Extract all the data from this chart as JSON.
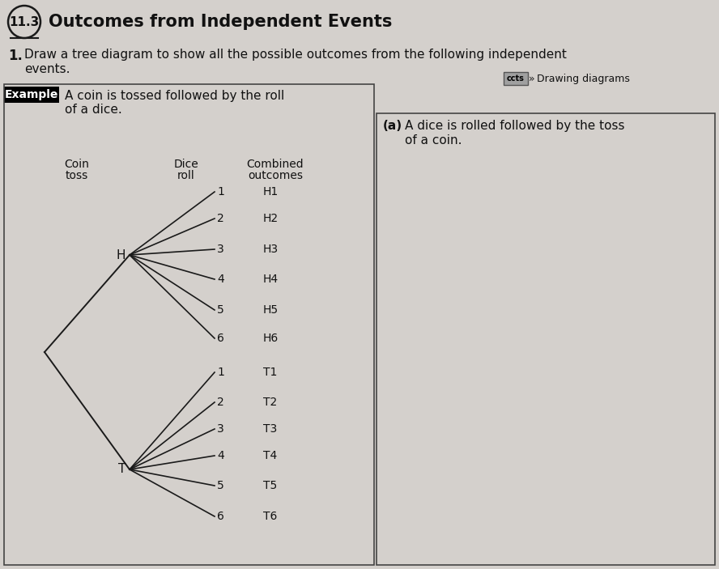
{
  "title_number": "11.3",
  "title_text": "Outcomes from Independent Events",
  "question_number": "1.",
  "ccts_label": "ccts",
  "drawing_label": "Drawing diagrams",
  "example_label": "Example",
  "part_a_label": "(a)",
  "part_a_text1": "A dice is rolled followed by the toss",
  "part_a_text2": "of a coin.",
  "example_text1": "A coin is tossed followed by the roll",
  "example_text2": "of a dice.",
  "col1_label1": "Coin",
  "col1_label2": "toss",
  "col2_label1": "Dice",
  "col2_label2": "roll",
  "col3_label1": "Combined",
  "col3_label2": "outcomes",
  "coin_outcomes": [
    "H",
    "T"
  ],
  "dice_outcomes": [
    "1",
    "2",
    "3",
    "4",
    "5",
    "6"
  ],
  "combined_H": [
    "H1",
    "H2",
    "H3",
    "H4",
    "H5",
    "H6"
  ],
  "combined_T": [
    "T1",
    "T2",
    "T3",
    "T4",
    "T5",
    "T6"
  ],
  "bg_color": "#c8c8c8",
  "page_color": "#d4d0cc",
  "line_color": "#1a1a1a",
  "text_color": "#111111",
  "panel_border_color": "#444444",
  "example_box_bg": "#000000",
  "example_box_text": "#ffffff",
  "q1_text1": "Draw a tree diagram to show all the possible outcomes from the following independent",
  "q1_text2": "events.",
  "figw": 8.88,
  "figh": 7.03,
  "dpi": 100
}
